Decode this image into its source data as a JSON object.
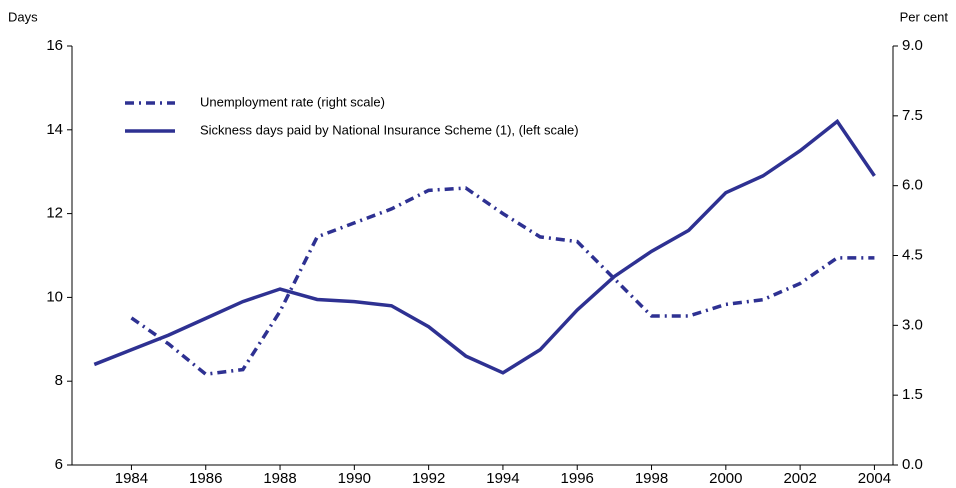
{
  "chart_data": {
    "type": "line",
    "y_label": "Days",
    "y2_label": "Per cent",
    "x": [
      1983,
      1984,
      1985,
      1986,
      1987,
      1988,
      1989,
      1990,
      1991,
      1992,
      1993,
      1994,
      1995,
      1996,
      1997,
      1998,
      1999,
      2000,
      2001,
      2002,
      2003,
      2004
    ],
    "series": [
      {
        "name": "Unemployment rate (right scale)",
        "color": "#2e3192",
        "dash": "dashdot",
        "axis": "y2",
        "values": [
          null,
          3.16,
          2.6,
          1.95,
          2.05,
          3.3,
          4.9,
          5.2,
          5.5,
          5.9,
          5.95,
          5.4,
          4.9,
          4.8,
          4.0,
          3.2,
          3.2,
          3.45,
          3.55,
          3.9,
          4.45,
          4.45
        ]
      },
      {
        "name": "Sickness days paid by National Insurance Scheme (1), (left scale)",
        "color": "#2e3192",
        "dash": "solid",
        "values": [
          8.4,
          8.75,
          9.1,
          9.5,
          9.9,
          10.2,
          9.95,
          9.9,
          9.8,
          9.3,
          8.6,
          8.2,
          8.75,
          9.7,
          10.5,
          11.1,
          11.6,
          12.5,
          12.9,
          13.5,
          14.2,
          12.9
        ]
      }
    ],
    "xlim": [
      1982.4,
      2004.5
    ],
    "xticks": [
      1984,
      1986,
      1988,
      1990,
      1992,
      1994,
      1996,
      1998,
      2000,
      2002,
      2004
    ],
    "ylim": [
      6,
      16
    ],
    "yticks": [
      6,
      8,
      10,
      12,
      14,
      16
    ],
    "y2lim": [
      0,
      9
    ],
    "y2ticks": [
      {
        "value": 0,
        "label": "0.0"
      },
      1.5,
      {
        "value": 3,
        "label": "3.0"
      },
      4.5,
      {
        "value": 6,
        "label": "6.0"
      },
      7.5,
      {
        "value": 9,
        "label": "9.0"
      }
    ]
  }
}
